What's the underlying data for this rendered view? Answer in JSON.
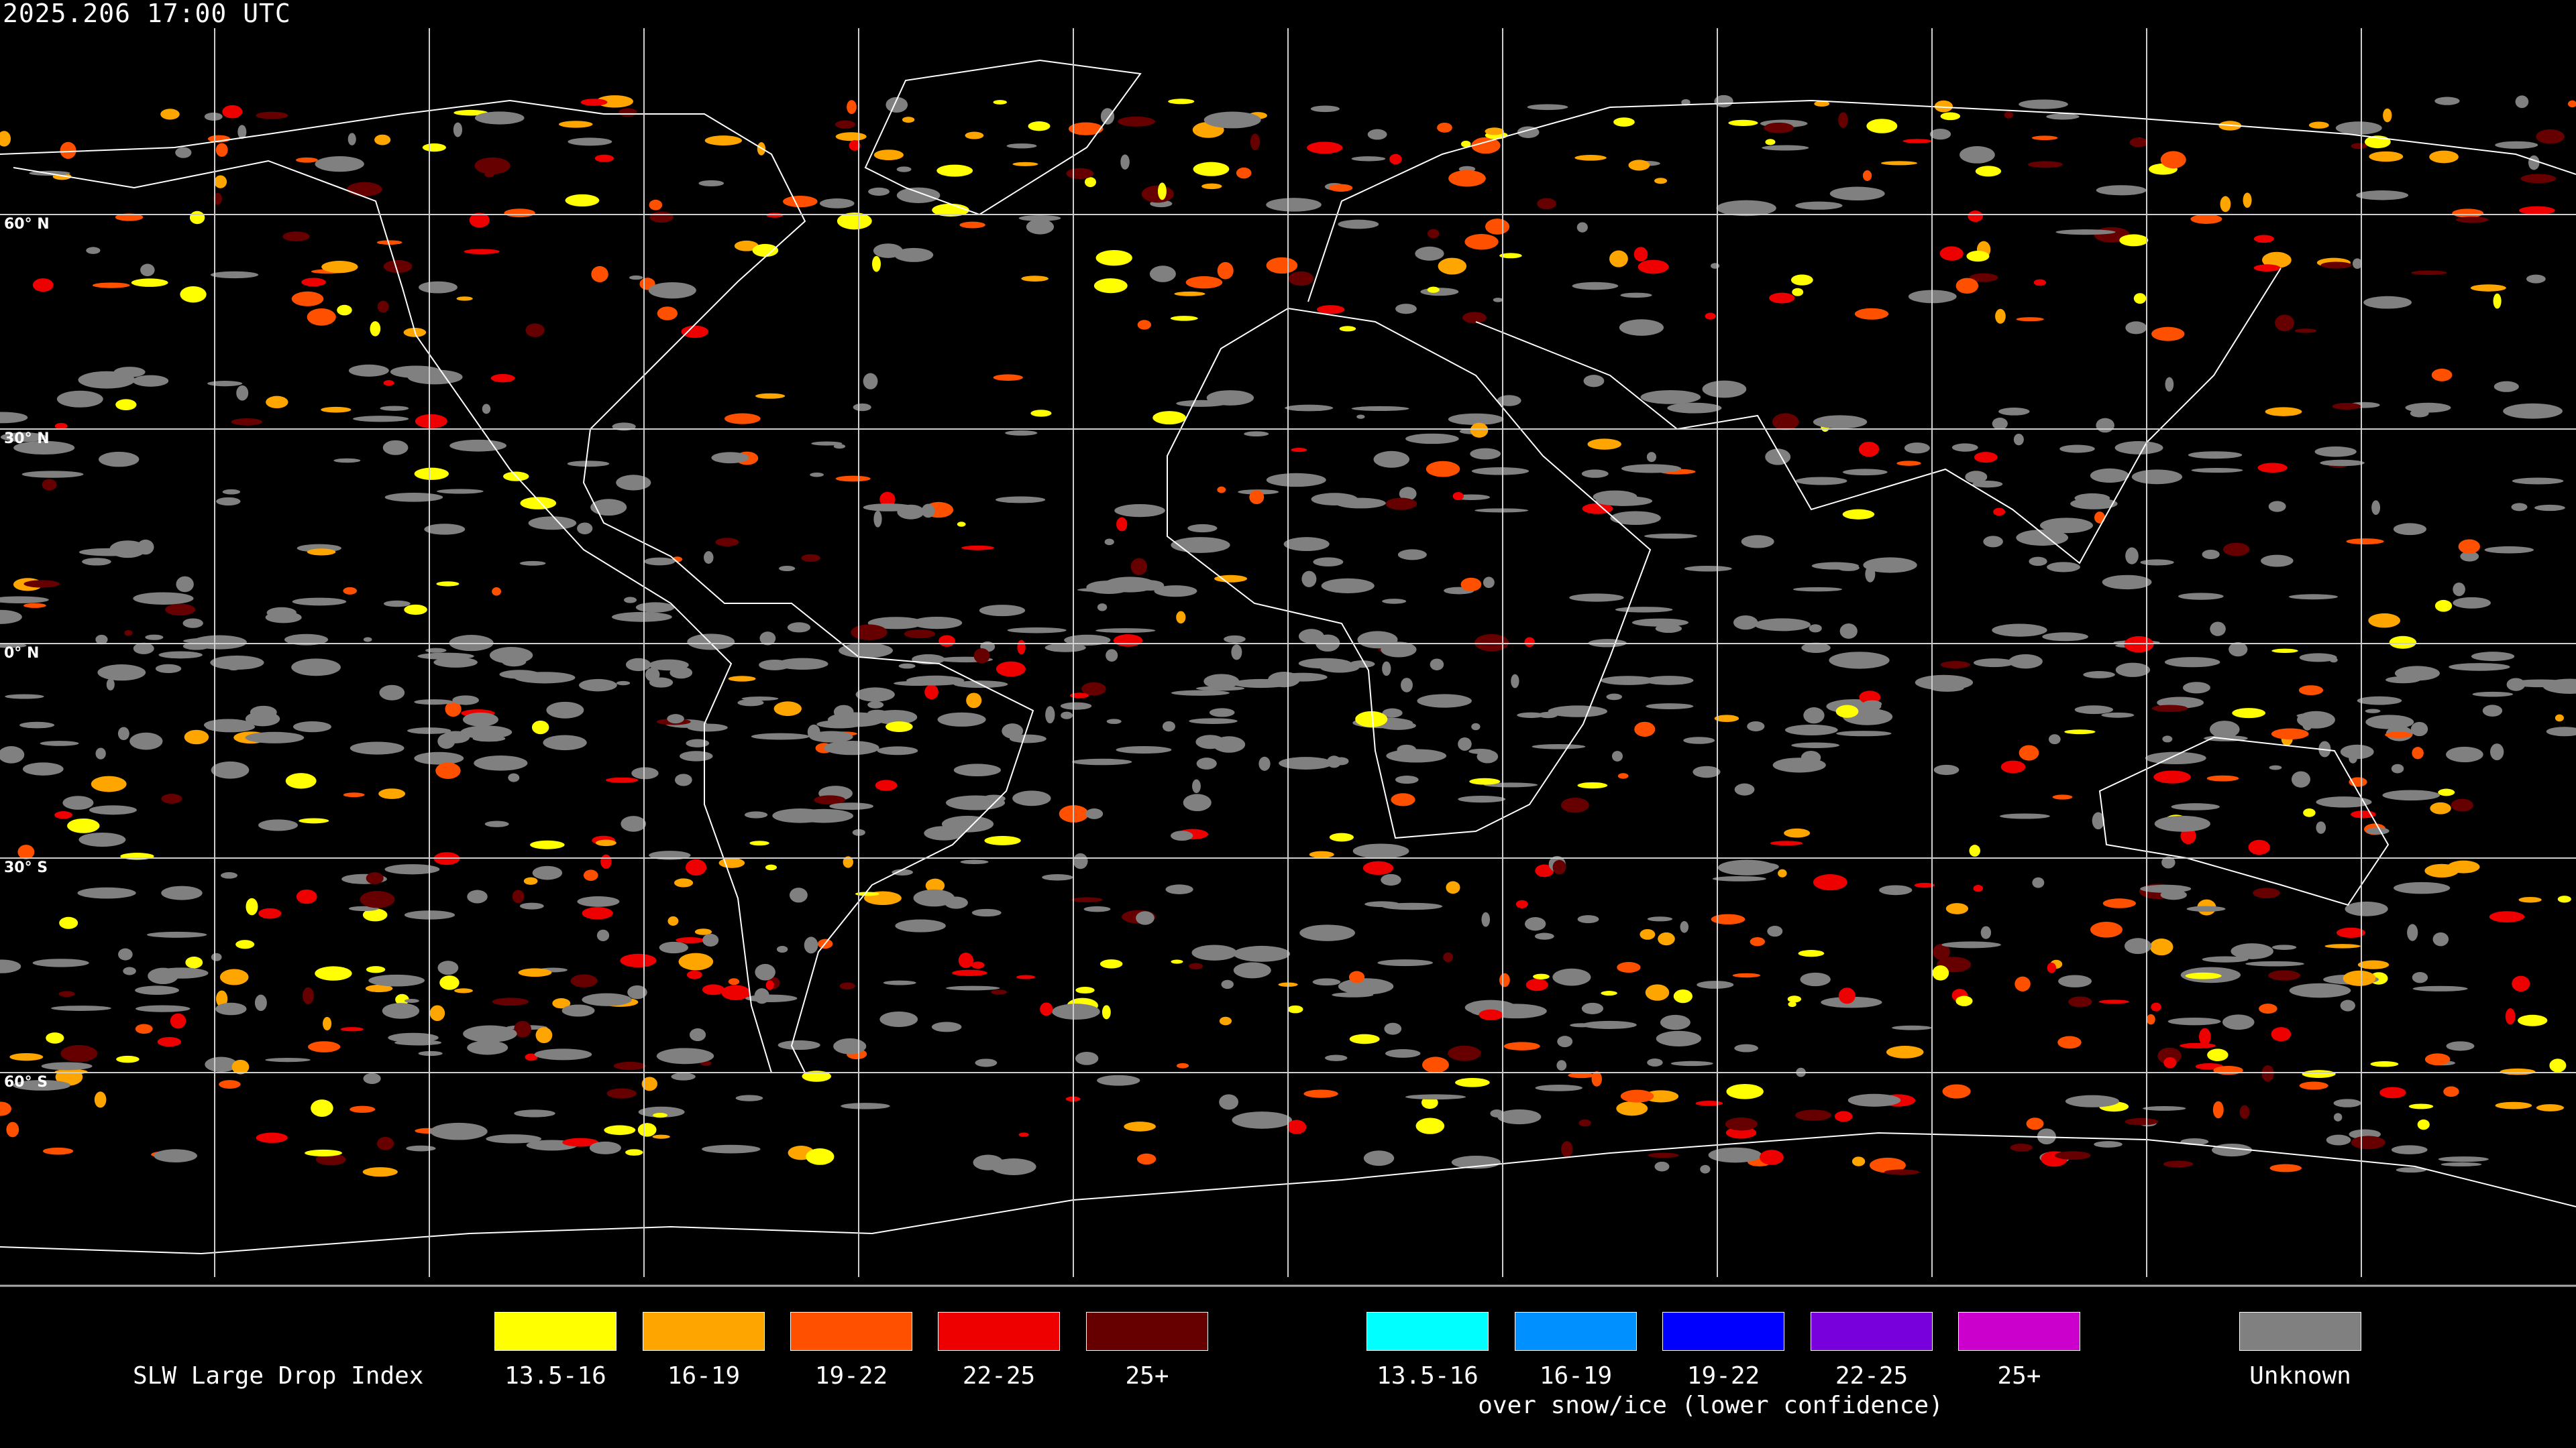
{
  "title": "2025.206 17:00 UTC",
  "latitude_labels": [
    "60° N",
    "30° N",
    "0° N",
    "30° S",
    "60° S"
  ],
  "legend": {
    "label": "SLW Large Drop Index",
    "main": [
      {
        "label": "13.5-16",
        "color": "#ffff00"
      },
      {
        "label": "16-19",
        "color": "#ffa500"
      },
      {
        "label": "19-22",
        "color": "#ff5000"
      },
      {
        "label": "22-25",
        "color": "#ee0000"
      },
      {
        "label": "25+",
        "color": "#660000"
      }
    ],
    "snow_ice": [
      {
        "label": "13.5-16",
        "color": "#00ffff"
      },
      {
        "label": "16-19",
        "color": "#0090ff"
      },
      {
        "label": "19-22",
        "color": "#0000ff"
      },
      {
        "label": "22-25",
        "color": "#7700dd"
      },
      {
        "label": "25+",
        "color": "#cc00cc"
      }
    ],
    "snow_ice_caption": "over snow/ice (lower confidence)",
    "unknown": {
      "label": "Unknown",
      "color": "#808080"
    }
  }
}
